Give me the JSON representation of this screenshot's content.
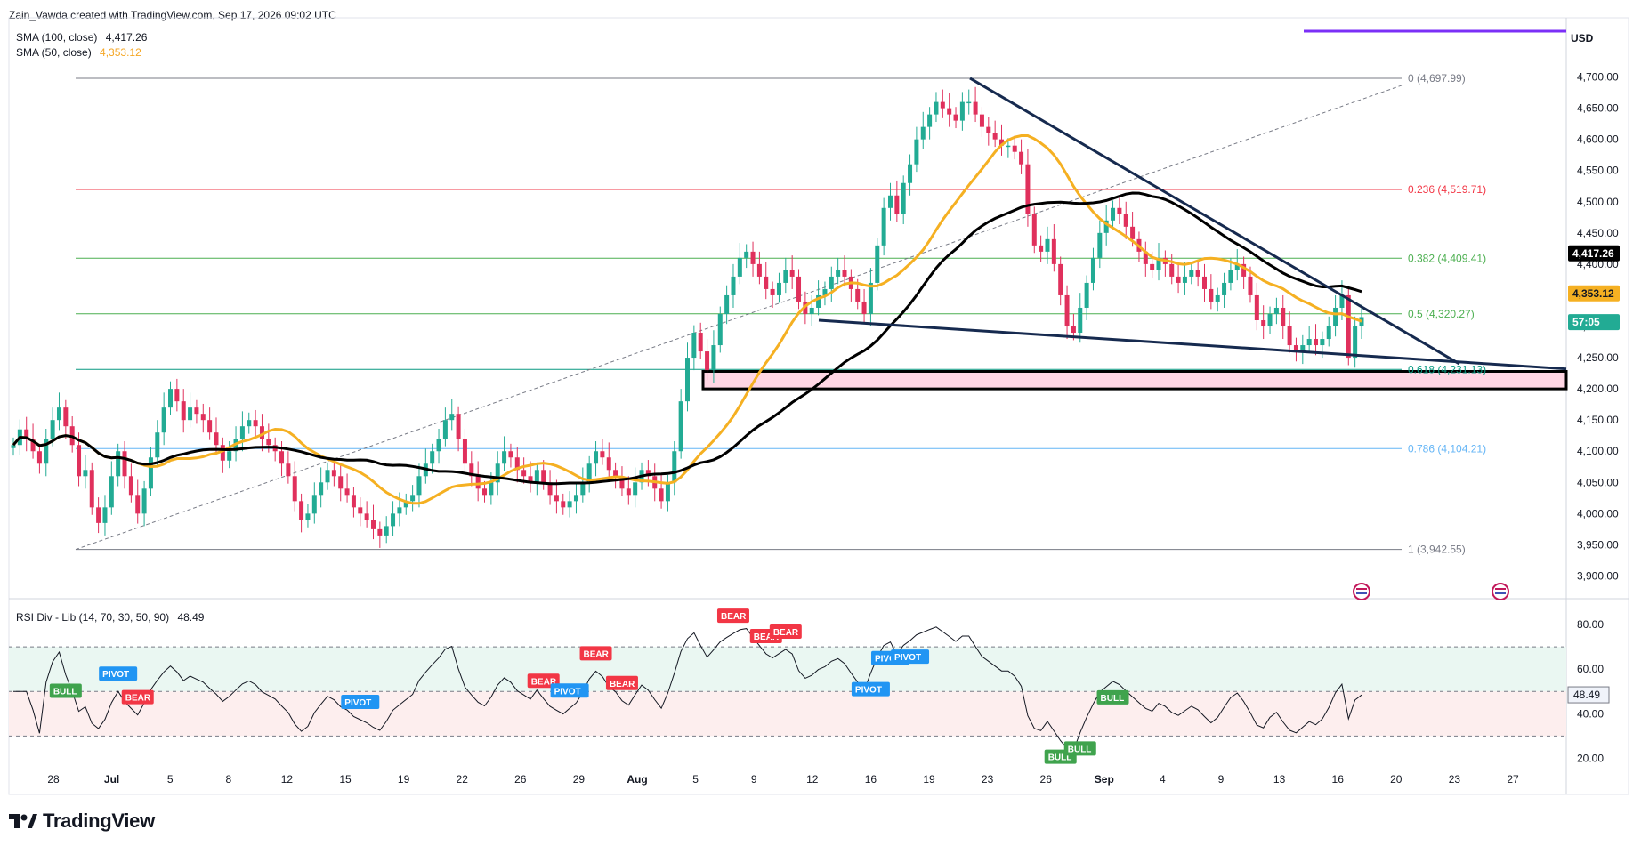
{
  "header": {
    "created_by": "Zain_Vawda created with TradingView.com, Sep 17, 2026 09:02 UTC"
  },
  "legend": {
    "sma100_label": "SMA (100, close)",
    "sma100_value": "4,417.26",
    "sma50_label": "SMA (50, close)",
    "sma50_value": "4,353.12"
  },
  "currency": "USD",
  "footer": {
    "brand": "TradingView"
  },
  "rsi_legend": {
    "label": "RSI Div - Lib (14, 70, 30, 50, 90)",
    "value": "48.49"
  },
  "colors": {
    "up": "#22ab94",
    "down": "#e0305c",
    "sma50": "#f5b022",
    "sma100": "#000000",
    "trendline": "#162a4f",
    "zone_fill": "#ffd6e4",
    "bull": "#3fa34d",
    "bear": "#f23645",
    "pivot": "#2195f3"
  },
  "chart_data": [
    {
      "type": "candlestick",
      "y_axis_ticks": [
        "4,700.00",
        "4,650.00",
        "4,600.00",
        "4,550.00",
        "4,500.00",
        "4,450.00",
        "4,400.00",
        "4,350.00",
        "4,300.00",
        "4,250.00",
        "4,200.00",
        "4,150.00",
        "4,100.00",
        "4,050.00",
        "4,000.00",
        "3,950.00",
        "3,900.00"
      ],
      "ylim": [
        3875,
        4745
      ],
      "x_axis_ticks": [
        "28",
        "Jul",
        "5",
        "8",
        "12",
        "15",
        "19",
        "22",
        "26",
        "29",
        "Aug",
        "5",
        "9",
        "12",
        "16",
        "19",
        "23",
        "26",
        "Sep",
        "4",
        "9",
        "13",
        "16",
        "20",
        "23",
        "27"
      ],
      "close": [
        4110,
        4135,
        4120,
        4100,
        4080,
        4120,
        4150,
        4170,
        4140,
        4110,
        4060,
        4070,
        4010,
        3985,
        4010,
        4060,
        4100,
        4060,
        4030,
        4000,
        4040,
        4090,
        4130,
        4170,
        4200,
        4180,
        4150,
        4170,
        4160,
        4150,
        4130,
        4110,
        4085,
        4100,
        4120,
        4140,
        4150,
        4140,
        4120,
        4110,
        4100,
        4080,
        4060,
        4020,
        3990,
        4000,
        4030,
        4050,
        4070,
        4060,
        4040,
        4030,
        4010,
        4000,
        3990,
        3975,
        3965,
        3980,
        4000,
        4010,
        4020,
        4030,
        4060,
        4080,
        4100,
        4120,
        4150,
        4160,
        4120,
        4080,
        4060,
        4040,
        4030,
        4050,
        4080,
        4100,
        4090,
        4070,
        4060,
        4050,
        4070,
        4050,
        4030,
        4020,
        4010,
        4020,
        4030,
        4050,
        4080,
        4100,
        4090,
        4070,
        4060,
        4040,
        4030,
        4050,
        4070,
        4060,
        4040,
        4020,
        4050,
        4100,
        4180,
        4250,
        4290,
        4260,
        4230,
        4270,
        4320,
        4350,
        4380,
        4410,
        4420,
        4400,
        4380,
        4360,
        4350,
        4370,
        4390,
        4380,
        4340,
        4320,
        4330,
        4350,
        4360,
        4380,
        4390,
        4380,
        4360,
        4340,
        4320,
        4370,
        4430,
        4490,
        4510,
        4480,
        4530,
        4560,
        4600,
        4620,
        4640,
        4660,
        4650,
        4640,
        4630,
        4660,
        4660,
        4640,
        4620,
        4610,
        4600,
        4590,
        4590,
        4580,
        4560,
        4480,
        4430,
        4420,
        4440,
        4400,
        4350,
        4300,
        4290,
        4330,
        4370,
        4410,
        4450,
        4470,
        4490,
        4480,
        4460,
        4440,
        4420,
        4400,
        4390,
        4410,
        4400,
        4380,
        4370,
        4380,
        4390,
        4380,
        4360,
        4340,
        4350,
        4370,
        4390,
        4400,
        4380,
        4350,
        4310,
        4300,
        4320,
        4330,
        4300,
        4270,
        4260,
        4270,
        4280,
        4270,
        4280,
        4300,
        4330,
        4350,
        4250,
        4300,
        4315
      ],
      "sma50_last": 4353.12,
      "sma100_last": 4417.26,
      "last_price_countdown": "57:05",
      "descending_channel": {
        "upper_from": 4697.99,
        "upper_to": 4240,
        "lower_from": 4310,
        "lower_to": 4232
      },
      "support_zone": [
        4200,
        4228
      ],
      "fibonacci": {
        "levels": [
          {
            "label": "0 (4,697.99)",
            "value": 4697.99,
            "color": "#787b86"
          },
          {
            "label": "0.236 (4,519.71)",
            "value": 4519.71,
            "color": "#f23645"
          },
          {
            "label": "0.382 (4,409.41)",
            "value": 4409.41,
            "color": "#4caf50"
          },
          {
            "label": "0.5 (4,320.27)",
            "value": 4320.27,
            "color": "#4caf50"
          },
          {
            "label": "0.618 (4,231.13)",
            "value": 4231.13,
            "color": "#089981"
          },
          {
            "label": "0.786 (4,104.21)",
            "value": 4104.21,
            "color": "#64b5f6"
          },
          {
            "label": "1 (3,942.55)",
            "value": 3942.55,
            "color": "#787b86"
          }
        ]
      }
    },
    {
      "type": "line",
      "y_axis_ticks": [
        "80.00",
        "60.00",
        "40.00",
        "20.00"
      ],
      "ylim": [
        15,
        88
      ],
      "bands": {
        "upper": 70,
        "middle": 50,
        "lower": 30
      },
      "last_value": "48.49",
      "signals": [
        {
          "label": "BULL",
          "idx": 8,
          "kind": "bull",
          "pos": "below"
        },
        {
          "label": "PIVOT",
          "idx": 16,
          "kind": "pivot",
          "pos": "above"
        },
        {
          "label": "BEAR",
          "idx": 19,
          "kind": "bear",
          "pos": "above"
        },
        {
          "label": "PIVOT",
          "idx": 53,
          "kind": "pivot",
          "pos": "above"
        },
        {
          "label": "BEAR",
          "idx": 81,
          "kind": "bear",
          "pos": "above"
        },
        {
          "label": "PIVOT",
          "idx": 85,
          "kind": "pivot",
          "pos": "above"
        },
        {
          "label": "BEAR",
          "idx": 89,
          "kind": "bear",
          "pos": "above"
        },
        {
          "label": "BEAR",
          "idx": 93,
          "kind": "bear",
          "pos": "above"
        },
        {
          "label": "BEAR",
          "idx": 110,
          "kind": "bear",
          "pos": "above"
        },
        {
          "label": "BEAR",
          "idx": 115,
          "kind": "bear",
          "pos": "above"
        },
        {
          "label": "BEAR",
          "idx": 118,
          "kind": "bear",
          "pos": "above"
        },
        {
          "label": "PIVOT",
          "idx": 131,
          "kind": "pivot",
          "pos": "below"
        },
        {
          "label": "PIVOT",
          "idx": 134,
          "kind": "pivot",
          "pos": "below"
        },
        {
          "label": "PIVOT",
          "idx": 137,
          "kind": "pivot",
          "pos": "below"
        },
        {
          "label": "BULL",
          "idx": 160,
          "kind": "bull",
          "pos": "below"
        },
        {
          "label": "BULL",
          "idx": 163,
          "kind": "bull",
          "pos": "below"
        },
        {
          "label": "BULL",
          "idx": 168,
          "kind": "bull",
          "pos": "below"
        }
      ]
    }
  ]
}
